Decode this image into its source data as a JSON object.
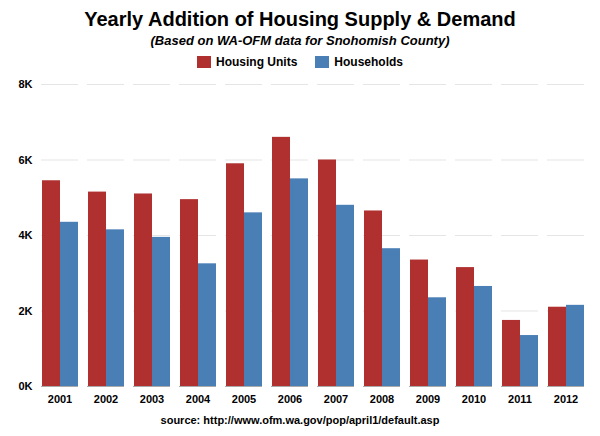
{
  "chart_data": {
    "type": "bar",
    "title": "Yearly Addition of Housing Supply & Demand",
    "subtitle": "(Based on WA-OFM data for Snohomish County)",
    "source": "source:  http://www.ofm.wa.gov/pop/april1/default.asp",
    "categories": [
      "2001",
      "2002",
      "2003",
      "2004",
      "2005",
      "2006",
      "2007",
      "2008",
      "2009",
      "2010",
      "2011",
      "2012"
    ],
    "series": [
      {
        "name": "Housing Units",
        "color": "#b03030",
        "values": [
          5450,
          5150,
          5100,
          4950,
          5900,
          6600,
          6000,
          4650,
          3350,
          3150,
          1750,
          2100
        ]
      },
      {
        "name": "Households",
        "color": "#4a7fb5",
        "values": [
          4350,
          4150,
          3950,
          3250,
          4600,
          5500,
          4800,
          3650,
          2350,
          2650,
          1350,
          2150
        ]
      }
    ],
    "ylim": [
      0,
      8000
    ],
    "yticks": [
      {
        "value": 0,
        "label": "0K"
      },
      {
        "value": 2000,
        "label": "2K"
      },
      {
        "value": 4000,
        "label": "4K"
      },
      {
        "value": 6000,
        "label": "6K"
      },
      {
        "value": 8000,
        "label": "8K"
      }
    ],
    "grid": true,
    "legend": "top"
  }
}
